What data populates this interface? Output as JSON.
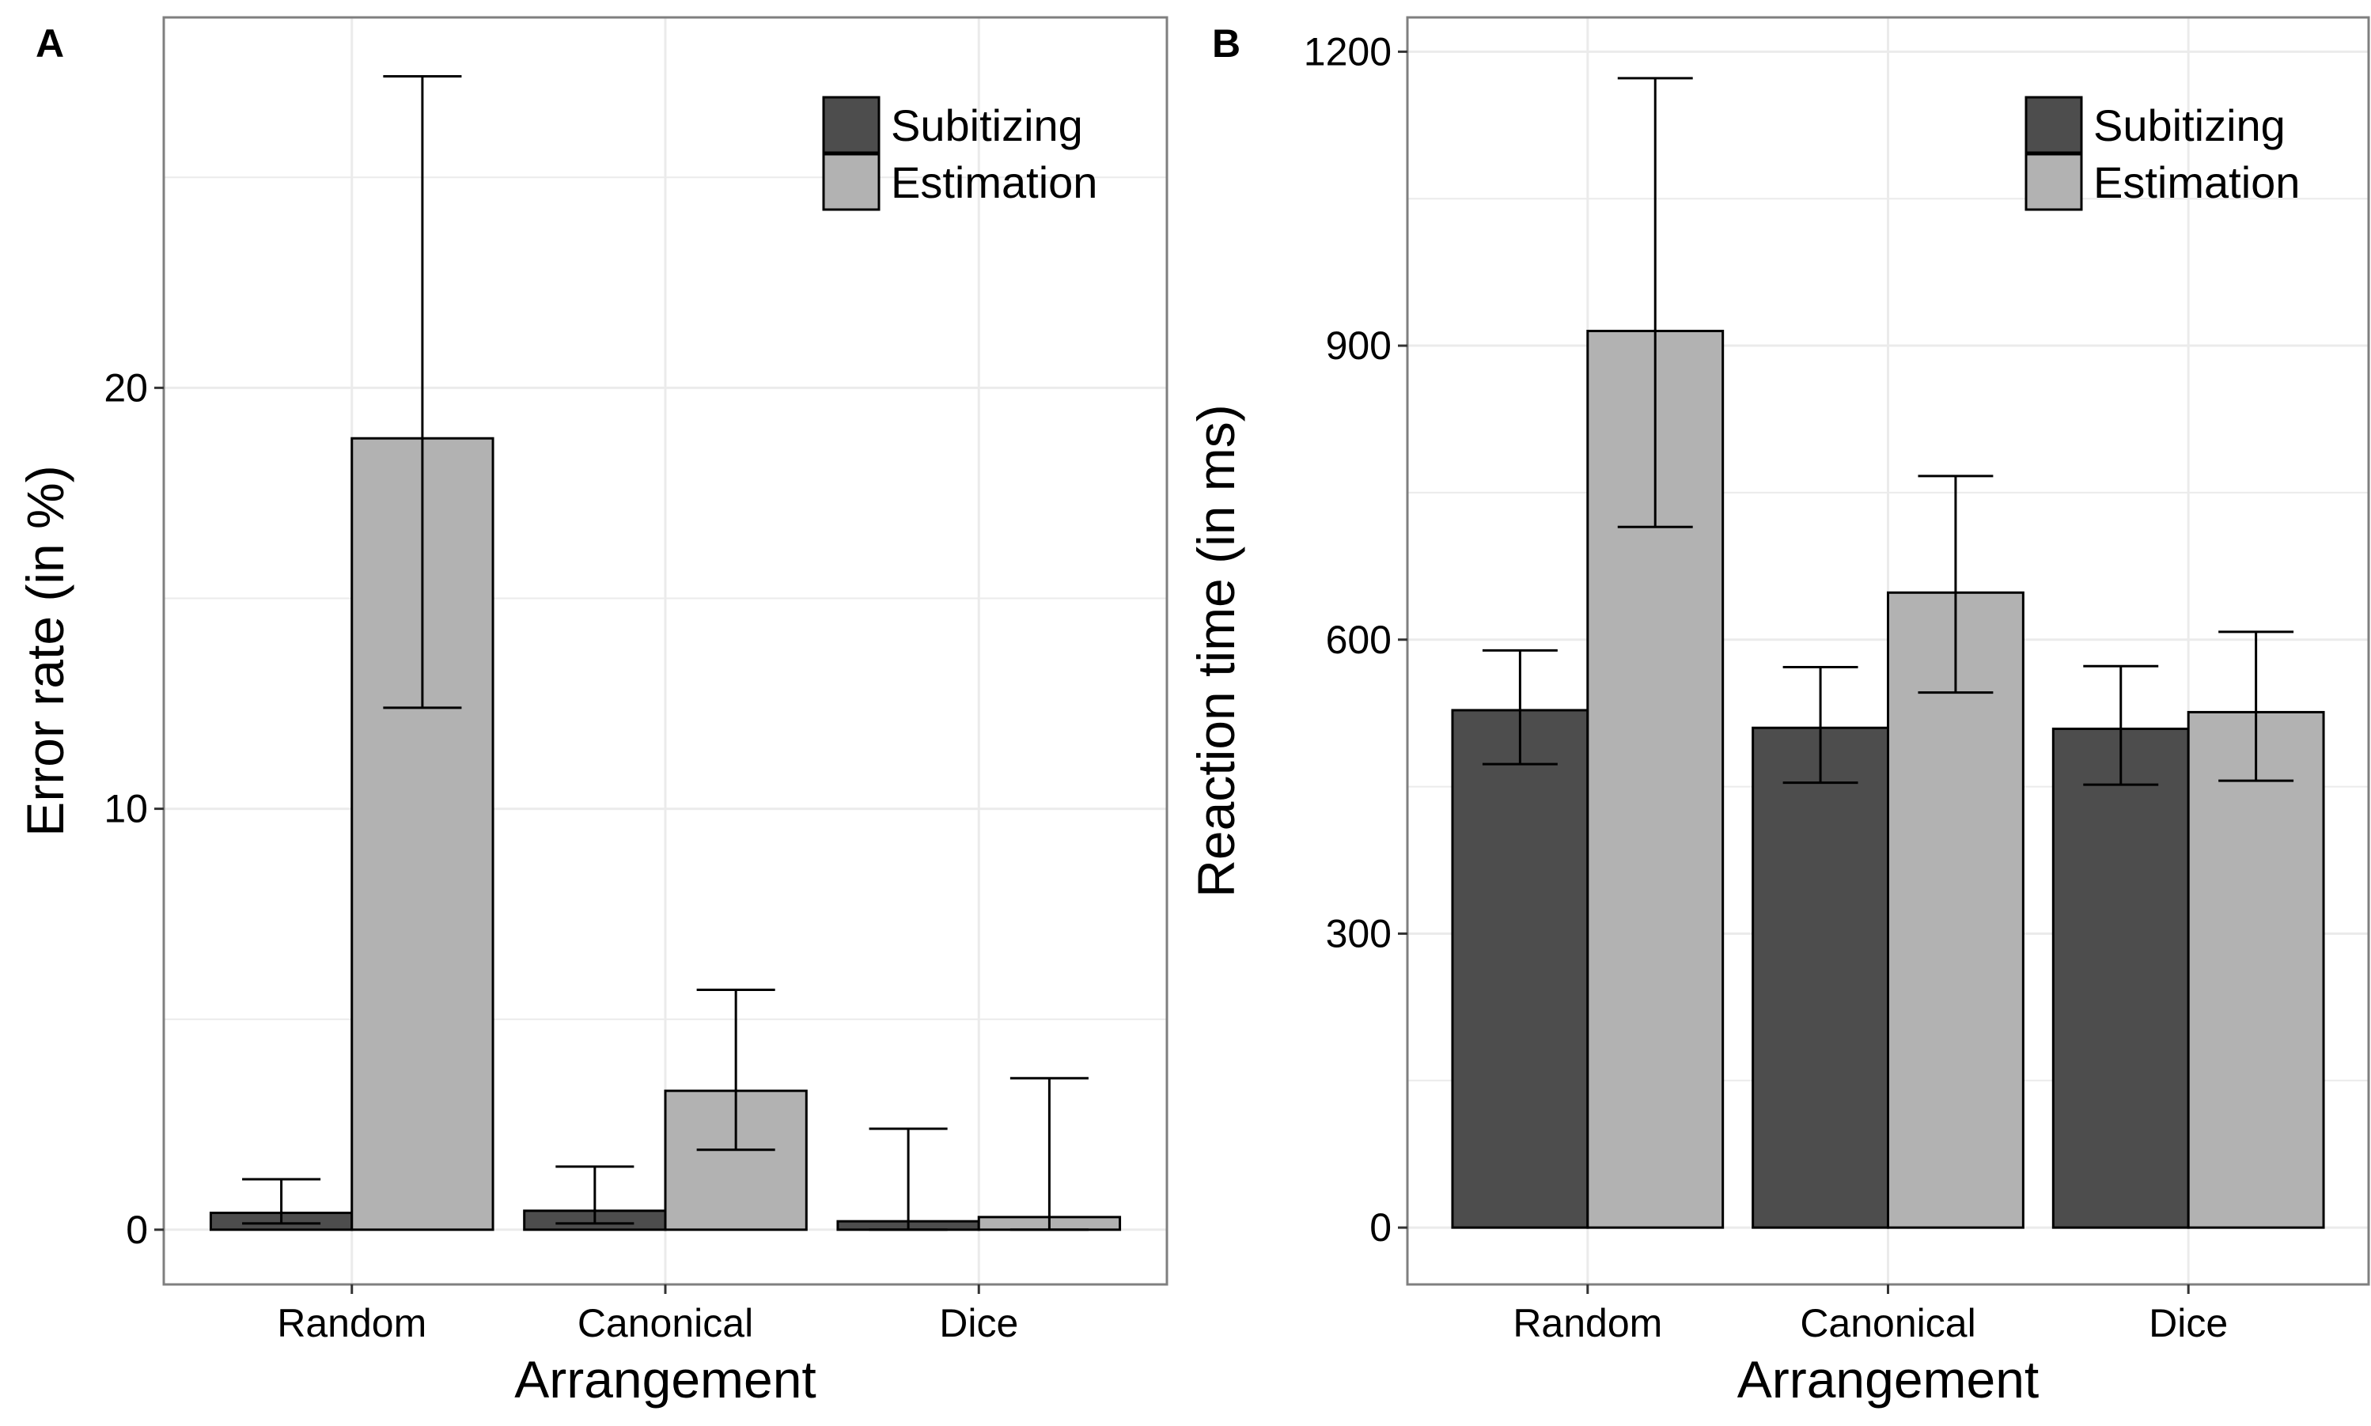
{
  "figure": {
    "colors": {
      "subitizing": "#4d4d4d",
      "estimation": "#b2b2b2",
      "panel_border": "#7f7f7f",
      "grid": "#ebebeb",
      "bar_outline": "#000000"
    }
  },
  "chart_data": [
    {
      "panel": "A",
      "type": "bar",
      "xlabel": "Arrangement",
      "ylabel": "Error rate (in %)",
      "categories": [
        "Random",
        "Canonical",
        "Dice"
      ],
      "ylim": [
        -1.3,
        28.8
      ],
      "yticks": [
        0,
        10,
        20
      ],
      "ytick_labels": [
        "0",
        "10",
        "20"
      ],
      "legend": {
        "position": "top-right",
        "entries": [
          "Subitizing",
          "Estimation"
        ]
      },
      "series": [
        {
          "name": "Subitizing",
          "color": "#4d4d4d",
          "values": [
            0.4,
            0.45,
            0.2
          ],
          "error_low": [
            0.15,
            0.15,
            0.0
          ],
          "error_high": [
            1.2,
            1.5,
            2.4
          ]
        },
        {
          "name": "Estimation",
          "color": "#b2b2b2",
          "values": [
            18.8,
            3.3,
            0.3
          ],
          "error_low": [
            12.4,
            1.9,
            0.0
          ],
          "error_high": [
            27.4,
            5.7,
            3.6
          ]
        }
      ]
    },
    {
      "panel": "B",
      "type": "bar",
      "xlabel": "Arrangement",
      "ylabel": "Reaction time (in ms)",
      "categories": [
        "Random",
        "Canonical",
        "Dice"
      ],
      "ylim": [
        -58,
        1235
      ],
      "yticks": [
        0,
        300,
        600,
        900,
        1200
      ],
      "ytick_labels": [
        "0",
        "300",
        "600",
        "900",
        "1200"
      ],
      "legend": {
        "position": "top-right",
        "entries": [
          "Subitizing",
          "Estimation"
        ]
      },
      "series": [
        {
          "name": "Subitizing",
          "color": "#4d4d4d",
          "values": [
            528,
            510,
            509
          ],
          "error_low": [
            473,
            454,
            452
          ],
          "error_high": [
            589,
            572,
            573
          ]
        },
        {
          "name": "Estimation",
          "color": "#b2b2b2",
          "values": [
            915,
            648,
            526
          ],
          "error_low": [
            715,
            546,
            456
          ],
          "error_high": [
            1173,
            767,
            608
          ]
        }
      ]
    }
  ]
}
